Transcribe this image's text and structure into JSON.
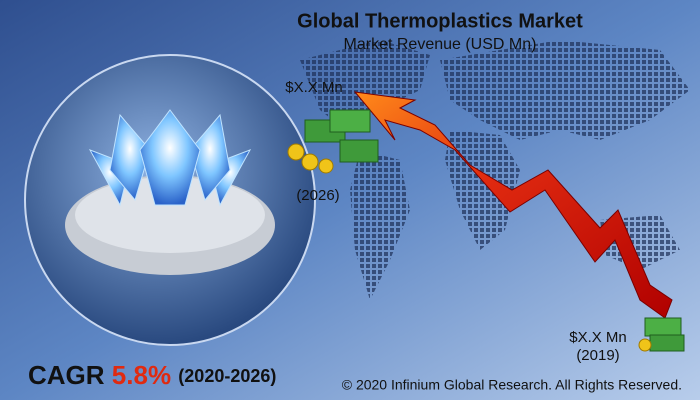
{
  "header": {
    "title": "Global Thermoplastics Market",
    "subtitle": "Market Revenue (USD Mn)"
  },
  "labels": {
    "end_value": "$X.X Mn",
    "end_year": "(2026)",
    "start_value": "$X.X Mn",
    "start_year": "(2019)"
  },
  "cagr": {
    "label": "CAGR",
    "value": "5.8%",
    "period": "(2020-2026)"
  },
  "footer": {
    "copyright": "© 2020 Infinium Global Research. All Rights Reserved."
  }
}
